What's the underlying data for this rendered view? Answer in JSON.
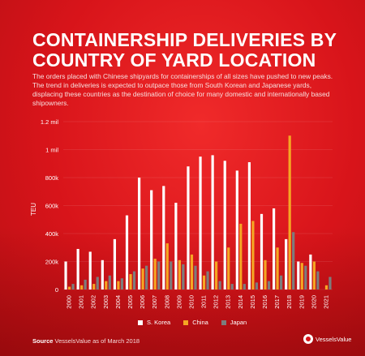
{
  "header": {
    "title": "CONTAINERSHIP DELIVERIES BY COUNTRY OF YARD LOCATION",
    "description": "The orders placed with Chinese shipyards for containerships of all sizes have pushed to new peaks. The trend in deliveries is expected to outpace those from South Korean and Japanese yards, displacing these countries as the destination of choice for many domestic and internationally based shipowners."
  },
  "footer": {
    "source_label": "Source",
    "source_text": "VesselsValue as of March 2018",
    "logo_text": "VesselsValue"
  },
  "colors": {
    "background": "#d8141a",
    "s_korea": "#ffffff",
    "china": "#f5a623",
    "japan": "#7d7d7d"
  },
  "chart_data": {
    "type": "bar",
    "ylabel": "TEU",
    "xlabel": "",
    "ylim": [
      0,
      1200000
    ],
    "yticks": [
      0,
      200000,
      400000,
      600000,
      800000,
      1000000,
      1200000
    ],
    "ytick_labels": [
      "0",
      "200k",
      "400k",
      "600k",
      "800k",
      "1 mil",
      "1.2 mil"
    ],
    "grid": true,
    "legend_position": "bottom",
    "categories": [
      "2000",
      "2001",
      "2002",
      "2003",
      "2004",
      "2005",
      "2006",
      "2007",
      "2008",
      "2009",
      "2010",
      "2011",
      "2012",
      "2013",
      "2014",
      "2015",
      "2016",
      "2017",
      "2018",
      "2019",
      "2020",
      "2021"
    ],
    "series": [
      {
        "name": "S. Korea",
        "values": [
          200000,
          290000,
          270000,
          210000,
          360000,
          530000,
          800000,
          710000,
          740000,
          620000,
          880000,
          950000,
          960000,
          920000,
          850000,
          910000,
          540000,
          580000,
          360000,
          200000,
          250000,
          0
        ]
      },
      {
        "name": "China",
        "values": [
          20000,
          30000,
          40000,
          60000,
          60000,
          110000,
          150000,
          220000,
          330000,
          210000,
          250000,
          100000,
          200000,
          300000,
          470000,
          490000,
          210000,
          300000,
          1100000,
          190000,
          200000,
          30000
        ]
      },
      {
        "name": "Japan",
        "values": [
          40000,
          70000,
          90000,
          100000,
          80000,
          130000,
          170000,
          200000,
          200000,
          180000,
          170000,
          130000,
          60000,
          40000,
          40000,
          50000,
          60000,
          100000,
          410000,
          170000,
          130000,
          90000
        ]
      }
    ]
  }
}
